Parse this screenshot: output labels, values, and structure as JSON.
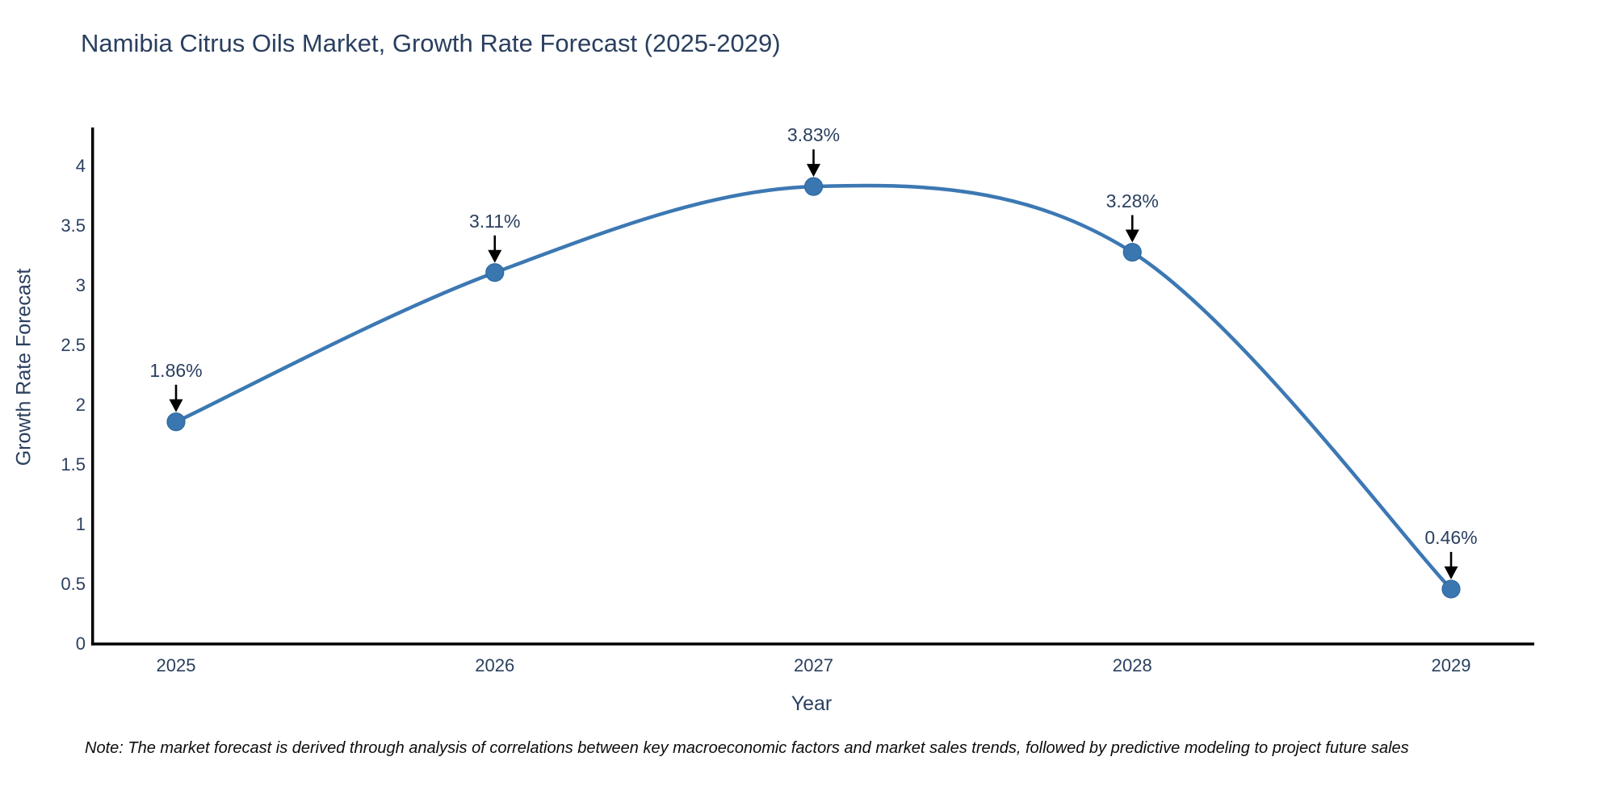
{
  "title": "Namibia Citrus Oils Market, Growth Rate Forecast (2025-2029)",
  "note": "Note: The market forecast is derived through analysis of correlations between key macroeconomic factors and market sales trends, followed by predictive modeling to project future sales",
  "chart_data": {
    "type": "line",
    "line_shape": "spline",
    "title": "Namibia Citrus Oils Market, Growth Rate Forecast (2025-2029)",
    "xlabel": "Year",
    "ylabel": "Growth Rate Forecast",
    "categories": [
      "2025",
      "2026",
      "2027",
      "2028",
      "2029"
    ],
    "values": [
      1.86,
      3.11,
      3.83,
      3.28,
      0.46
    ],
    "point_labels": [
      "1.86%",
      "3.11%",
      "3.83%",
      "3.28%",
      "0.46%"
    ],
    "ylim": [
      0,
      4
    ],
    "yticks": [
      0,
      0.5,
      1,
      1.5,
      2,
      2.5,
      3,
      3.5,
      4
    ],
    "grid": false,
    "legend": "none",
    "annotation_style": "label-with-down-arrow",
    "colors": {
      "line": "#3c78b3",
      "marker_fill": "#3a77b0",
      "marker_edge": "#2d689e",
      "axis": "#000000",
      "text": "#2a3f5f",
      "arrow": "#000000",
      "background": "#ffffff"
    }
  }
}
